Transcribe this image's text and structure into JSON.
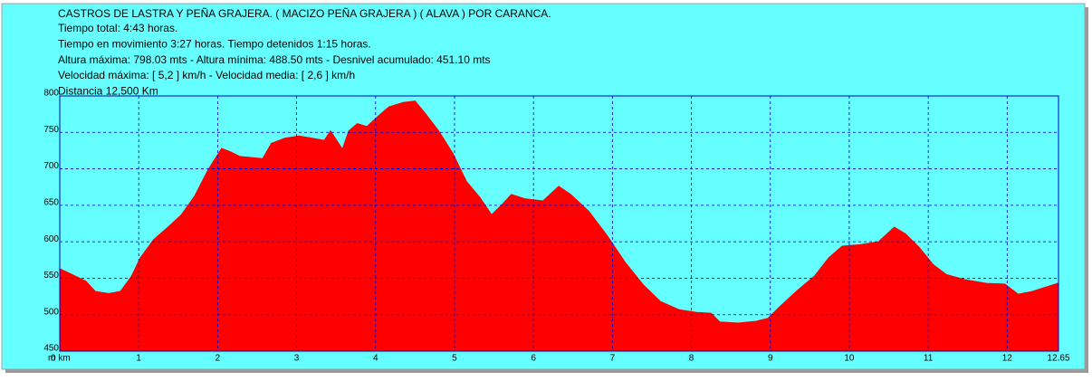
{
  "chart_data": {
    "type": "area",
    "title": "CASTROS DE LASTRA Y PEÑA GRAJERA. ( MACIZO PEÑA GRAJERA ) ( ALAVA ) POR CARANCA.",
    "annotations": [
      "Tiempo total: 4:43  horas.",
      "Tiempo en movimiento 3:27 horas. Tiempo detenidos 1:15 horas.",
      "Altura máxima: 798.03 mts - Altura mínima: 488.50 mts - Desnivel acumulado: 451.10 mts",
      "Velocidad máxima:  [ 5,2 ] km/h - Velocidad media: [ 2,6 ] km/h",
      "Distancia 12,500 Km"
    ],
    "y_unit": "m",
    "color": "#ff0000",
    "x": [
      0,
      0.16,
      0.33,
      0.45,
      0.62,
      0.77,
      0.91,
      1.02,
      1.19,
      1.36,
      1.54,
      1.71,
      1.88,
      2.05,
      2.17,
      2.28,
      2.57,
      2.68,
      2.85,
      3.03,
      3.2,
      3.35,
      3.43,
      3.58,
      3.66,
      3.77,
      3.89,
      4.04,
      4.17,
      4.35,
      4.5,
      4.63,
      4.8,
      4.98,
      5.15,
      5.32,
      5.47,
      5.61,
      5.72,
      5.89,
      6.12,
      6.32,
      6.47,
      6.7,
      6.93,
      7.16,
      7.39,
      7.61,
      7.84,
      8.07,
      8.25,
      8.36,
      8.59,
      8.82,
      8.97,
      9.11,
      9.33,
      9.56,
      9.74,
      9.91,
      10.14,
      10.37,
      10.57,
      10.71,
      10.88,
      11.06,
      11.23,
      11.46,
      11.74,
      11.97,
      12.14,
      12.32,
      12.64
    ],
    "values": [
      563,
      555,
      546,
      532,
      529,
      532,
      553,
      578,
      603,
      619,
      637,
      663,
      699,
      728,
      723,
      717,
      714,
      735,
      742,
      745,
      742,
      739,
      752,
      727,
      752,
      762,
      758,
      773,
      785,
      791,
      793,
      776,
      752,
      721,
      683,
      661,
      637,
      652,
      665,
      659,
      656,
      676,
      665,
      642,
      609,
      572,
      541,
      518,
      507,
      503,
      502,
      490,
      488.5,
      491,
      495,
      510,
      532,
      553,
      578,
      594,
      596,
      600,
      620,
      611,
      593,
      569,
      555,
      548,
      543,
      542,
      528,
      532,
      543
    ],
    "xlim": [
      0,
      12.65
    ],
    "ylim": [
      450,
      800
    ],
    "xticks": [
      {
        "value": 0,
        "label": "0 km"
      },
      1,
      2,
      3,
      4,
      5,
      6,
      7,
      8,
      9,
      10,
      11,
      12,
      12.65
    ],
    "yticks": [
      450,
      500,
      550,
      600,
      650,
      700,
      750,
      800
    ],
    "grid": true
  }
}
